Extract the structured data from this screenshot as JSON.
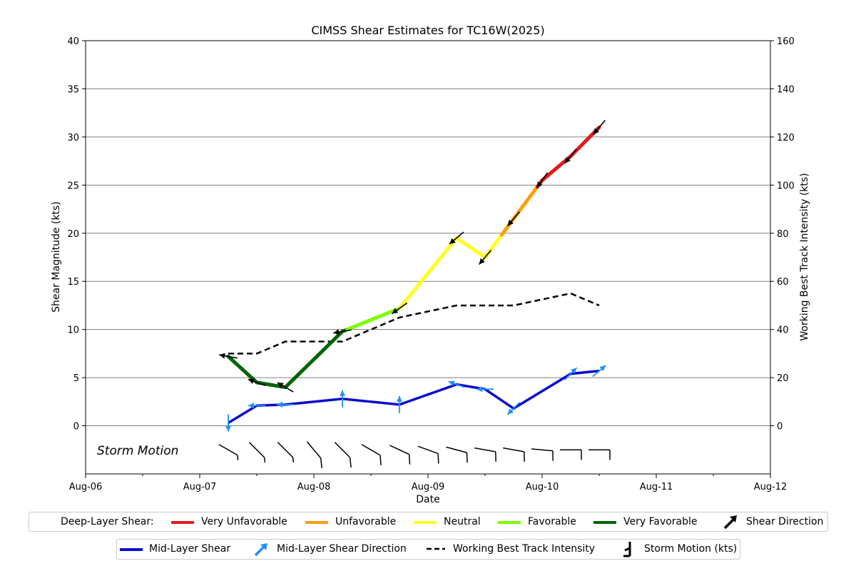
{
  "chart_data": {
    "type": "line",
    "title": "CIMSS Shear Estimates for TC16W(2025)",
    "xlabel": "Date",
    "ylabel": "Shear Magnitude (kts)",
    "y2label": "Working Best Track Intensity (kts)",
    "x_range": [
      "2025-08-06 00:00",
      "2025-08-12 00:00"
    ],
    "x_tick_labels": [
      "Aug-06",
      "Aug-07",
      "Aug-08",
      "Aug-09",
      "Aug-10",
      "Aug-11",
      "Aug-12"
    ],
    "ylim": [
      -5,
      40
    ],
    "y_ticks": [
      0,
      5,
      10,
      15,
      20,
      25,
      30,
      35,
      40
    ],
    "y2lim": [
      -20,
      160
    ],
    "y2_ticks": [
      0,
      20,
      40,
      60,
      80,
      100,
      120,
      140,
      160
    ],
    "grid": "horizontal",
    "storm_motion_label": "Storm Motion",
    "deep_layer_colors": {
      "Very Unfavorable": "#e31a1c",
      "Unfavorable": "#ff9f0a",
      "Neutral": "#ffff1f",
      "Favorable": "#7cfc00",
      "Very Favorable": "#006400"
    },
    "series": [
      {
        "name": "Deep-Layer Shear",
        "x": [
          "2025-08-07 06:00",
          "2025-08-07 12:00",
          "2025-08-07 18:00",
          "2025-08-08 06:00",
          "2025-08-08 18:00",
          "2025-08-09 06:00",
          "2025-08-09 12:00",
          "2025-08-09 18:00",
          "2025-08-10 00:00",
          "2025-08-10 06:00",
          "2025-08-10 12:00"
        ],
        "values": [
          7.2,
          4.5,
          4.0,
          9.8,
          12.2,
          19.5,
          17.5,
          21.5,
          25.5,
          28.0,
          31.0
        ],
        "arrow_dir_deg": [
          280,
          290,
          300,
          260,
          235,
          230,
          220,
          220,
          215,
          220,
          220
        ]
      },
      {
        "name": "Mid-Layer Shear",
        "color": "#0a0acd",
        "arrow_color": "#1e90ff",
        "x": [
          "2025-08-07 06:00",
          "2025-08-07 12:00",
          "2025-08-07 18:00",
          "2025-08-08 06:00",
          "2025-08-08 18:00",
          "2025-08-09 06:00",
          "2025-08-09 12:00",
          "2025-08-09 18:00",
          "2025-08-10 06:00",
          "2025-08-10 12:00"
        ],
        "values": [
          0.3,
          2.1,
          2.2,
          2.8,
          2.2,
          4.3,
          3.8,
          1.8,
          5.4,
          5.7
        ],
        "arrow_dir_deg": [
          180,
          270,
          270,
          0,
          0,
          290,
          270,
          225,
          45,
          50
        ]
      },
      {
        "name": "Working Best Track Intensity",
        "axis": "right",
        "color": "#000000",
        "x": [
          "2025-08-07 06:00",
          "2025-08-07 12:00",
          "2025-08-07 18:00",
          "2025-08-08 00:00",
          "2025-08-08 06:00",
          "2025-08-08 18:00",
          "2025-08-09 06:00",
          "2025-08-09 12:00",
          "2025-08-09 18:00",
          "2025-08-10 06:00",
          "2025-08-10 12:00"
        ],
        "values": [
          30,
          30,
          35,
          35,
          35,
          45,
          50,
          50,
          50,
          55,
          50
        ]
      },
      {
        "name": "Storm Motion (kts)",
        "x": [
          "2025-08-07 06:00",
          "2025-08-07 12:00",
          "2025-08-07 18:00",
          "2025-08-08 00:00",
          "2025-08-08 06:00",
          "2025-08-08 12:00",
          "2025-08-08 18:00",
          "2025-08-09 00:00",
          "2025-08-09 06:00",
          "2025-08-09 12:00",
          "2025-08-09 18:00",
          "2025-08-10 00:00",
          "2025-08-10 06:00",
          "2025-08-10 12:00"
        ],
        "direction_deg": [
          120,
          135,
          135,
          140,
          135,
          120,
          115,
          110,
          105,
          100,
          100,
          95,
          90,
          90
        ],
        "speed_kts": [
          5,
          5,
          5,
          10,
          10,
          10,
          10,
          10,
          10,
          10,
          10,
          10,
          10,
          10
        ]
      }
    ],
    "legend_top": {
      "label": "Deep-Layer Shear:",
      "items": [
        "Very Unfavorable",
        "Unfavorable",
        "Neutral",
        "Favorable",
        "Very Favorable",
        "Shear Direction"
      ]
    },
    "legend_bottom": {
      "items": [
        "Mid-Layer Shear",
        "Mid-Layer Shear Direction",
        "Working Best Track Intensity",
        "Storm Motion (kts)"
      ]
    }
  }
}
